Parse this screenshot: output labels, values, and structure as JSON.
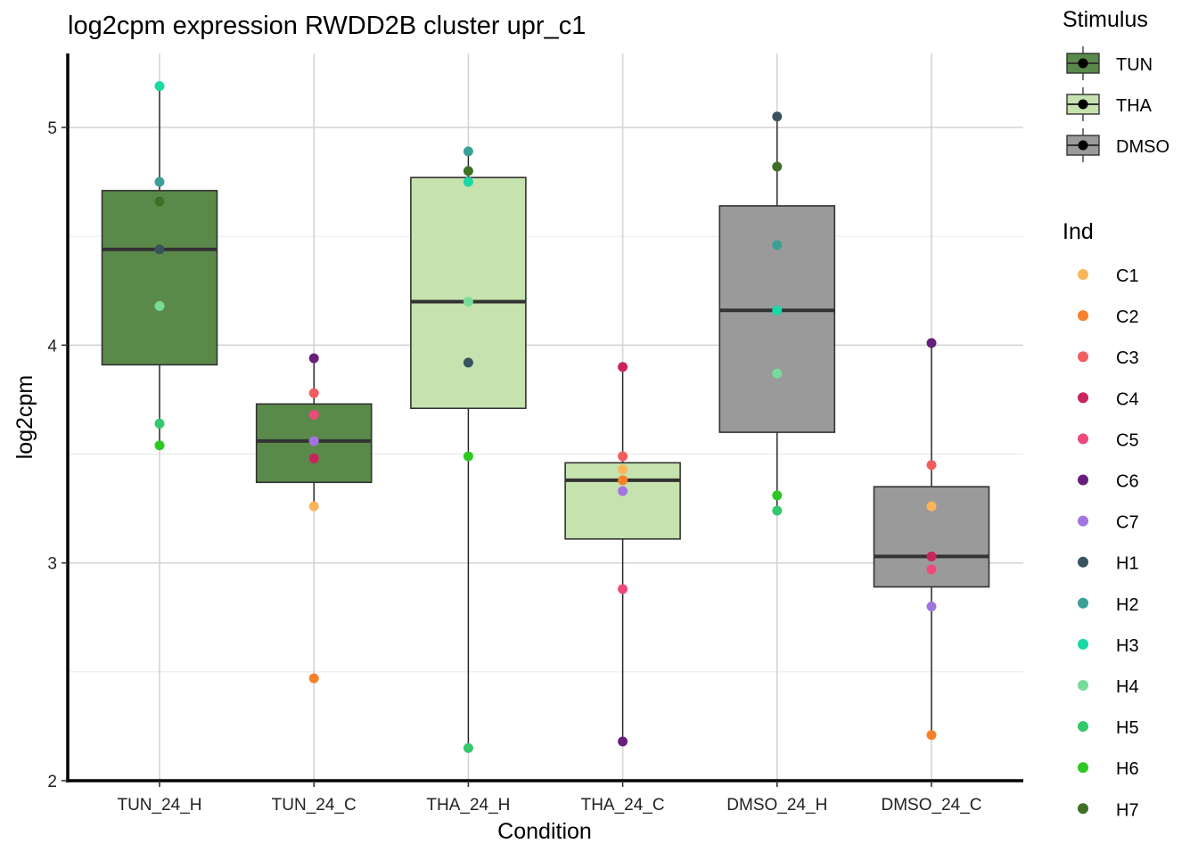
{
  "chart_data": {
    "type": "boxplot",
    "title": "log2cpm expression RWDD2B cluster upr_c1",
    "xlabel": "Condition",
    "ylabel": "log2cpm",
    "ylim": [
      2,
      5.35
    ],
    "yticks": [
      2,
      3,
      4,
      5
    ],
    "grid": true,
    "categories": [
      "TUN_24_H",
      "TUN_24_C",
      "THA_24_H",
      "THA_24_C",
      "DMSO_24_H",
      "DMSO_24_C"
    ],
    "stimulus": [
      "TUN",
      "TUN",
      "THA",
      "THA",
      "DMSO",
      "DMSO"
    ],
    "boxes": [
      {
        "q1": 3.91,
        "median": 4.44,
        "q3": 4.71,
        "whisker_low": 3.54,
        "whisker_high": 5.19
      },
      {
        "q1": 3.37,
        "median": 3.56,
        "q3": 3.73,
        "whisker_low": 3.26,
        "whisker_high": 3.94
      },
      {
        "q1": 3.71,
        "median": 4.2,
        "q3": 4.77,
        "whisker_low": 2.15,
        "whisker_high": 4.89
      },
      {
        "q1": 3.11,
        "median": 3.38,
        "q3": 3.46,
        "whisker_low": 2.18,
        "whisker_high": 3.9
      },
      {
        "q1": 3.6,
        "median": 4.16,
        "q3": 4.64,
        "whisker_low": 3.24,
        "whisker_high": 5.05
      },
      {
        "q1": 2.89,
        "median": 3.03,
        "q3": 3.35,
        "whisker_low": 2.21,
        "whisker_high": 4.01
      }
    ],
    "points": [
      [
        [
          "H3",
          5.19
        ],
        [
          "H2",
          4.75
        ],
        [
          "H7",
          4.66
        ],
        [
          "H1",
          4.44
        ],
        [
          "H4",
          4.18
        ],
        [
          "H5",
          3.64
        ],
        [
          "H6",
          3.54
        ]
      ],
      [
        [
          "C6",
          3.94
        ],
        [
          "C3",
          3.78
        ],
        [
          "C5",
          3.68
        ],
        [
          "C7",
          3.56
        ],
        [
          "C4",
          3.48
        ],
        [
          "C1",
          3.26
        ],
        [
          "C2",
          2.47
        ]
      ],
      [
        [
          "H2",
          4.89
        ],
        [
          "H7",
          4.8
        ],
        [
          "H3",
          4.75
        ],
        [
          "H4",
          4.2
        ],
        [
          "H1",
          3.92
        ],
        [
          "H6",
          3.49
        ],
        [
          "H5",
          2.15
        ]
      ],
      [
        [
          "C4",
          3.9
        ],
        [
          "C3",
          3.49
        ],
        [
          "C1",
          3.43
        ],
        [
          "C2",
          3.38
        ],
        [
          "C7",
          3.33
        ],
        [
          "C5",
          2.88
        ],
        [
          "C6",
          2.18
        ]
      ],
      [
        [
          "H1",
          5.05
        ],
        [
          "H7",
          4.82
        ],
        [
          "H2",
          4.46
        ],
        [
          "H3",
          4.16
        ],
        [
          "H4",
          3.87
        ],
        [
          "H6",
          3.31
        ],
        [
          "H5",
          3.24
        ]
      ],
      [
        [
          "C6",
          4.01
        ],
        [
          "C3",
          3.45
        ],
        [
          "C1",
          3.26
        ],
        [
          "C4",
          3.03
        ],
        [
          "C5",
          2.97
        ],
        [
          "C7",
          2.8
        ],
        [
          "C2",
          2.21
        ]
      ]
    ],
    "legend_stimulus": {
      "title": "Stimulus",
      "items": [
        {
          "name": "TUN",
          "color": "#5A8A4A"
        },
        {
          "name": "THA",
          "color": "#C6E2AF"
        },
        {
          "name": "DMSO",
          "color": "#9A9A9A"
        }
      ]
    },
    "legend_ind": {
      "title": "Ind",
      "items": [
        {
          "name": "C1",
          "color": "#FDB55A"
        },
        {
          "name": "C2",
          "color": "#F88029"
        },
        {
          "name": "C3",
          "color": "#F05E60"
        },
        {
          "name": "C4",
          "color": "#C9245B"
        },
        {
          "name": "C5",
          "color": "#EE4A7B"
        },
        {
          "name": "C6",
          "color": "#66207A"
        },
        {
          "name": "C7",
          "color": "#A274E0"
        },
        {
          "name": "H1",
          "color": "#37535F"
        },
        {
          "name": "H2",
          "color": "#3AA096"
        },
        {
          "name": "H3",
          "color": "#17D9A6"
        },
        {
          "name": "H4",
          "color": "#76DC98"
        },
        {
          "name": "H5",
          "color": "#36C86C"
        },
        {
          "name": "H6",
          "color": "#2EC822"
        },
        {
          "name": "H7",
          "color": "#3E7026"
        }
      ]
    }
  }
}
